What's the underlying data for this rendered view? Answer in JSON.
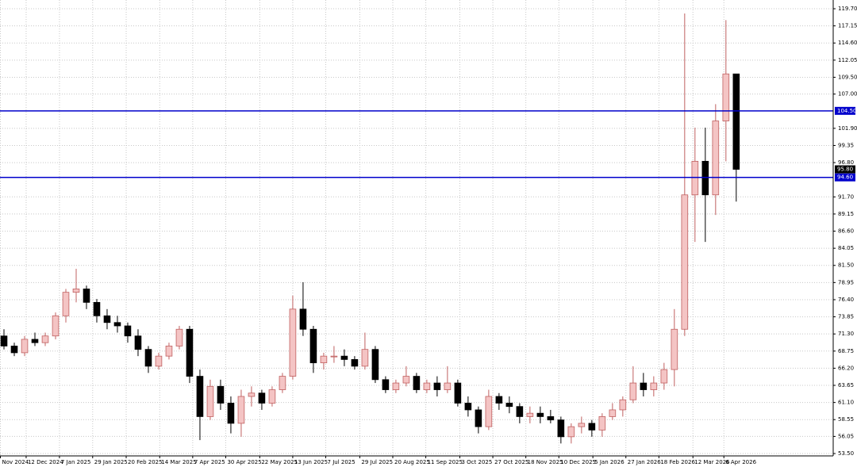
{
  "chart_data": {
    "type": "candlestick",
    "colors": {
      "up": "#f4c4c4",
      "up_edge": "#c06060",
      "down": "#000000",
      "hline": "#0000cc",
      "grid": "#c8c8c8"
    },
    "grid": true,
    "ylim": [
      53.15,
      121.0
    ],
    "xlim": [
      -0.385,
      80.4
    ],
    "yticks": [
      {
        "value": 119.7,
        "label": "119.70"
      },
      {
        "value": 117.15,
        "label": "117.15"
      },
      {
        "value": 114.6,
        "label": "114.60"
      },
      {
        "value": 112.05,
        "label": "112.05"
      },
      {
        "value": 109.5,
        "label": "109.50"
      },
      {
        "value": 107,
        "label": "107.00"
      },
      {
        "value": 101.9,
        "label": "101.90"
      },
      {
        "value": 99.35,
        "label": "99.35"
      },
      {
        "value": 96.8,
        "label": "96.80"
      },
      {
        "value": 91.7,
        "label": "91.70"
      },
      {
        "value": 89.15,
        "label": "89.15"
      },
      {
        "value": 86.6,
        "label": "86.60"
      },
      {
        "value": 84.05,
        "label": "84.05"
      },
      {
        "value": 81.5,
        "label": "81.50"
      },
      {
        "value": 78.95,
        "label": "78.95"
      },
      {
        "value": 76.4,
        "label": "76.40"
      },
      {
        "value": 73.85,
        "label": "73.85"
      },
      {
        "value": 71.3,
        "label": "71.30"
      },
      {
        "value": 68.75,
        "label": "68.75"
      },
      {
        "value": 66.2,
        "label": "66.20"
      },
      {
        "value": 63.65,
        "label": "63.65"
      },
      {
        "value": 61.1,
        "label": "61.10"
      },
      {
        "value": 58.55,
        "label": "58.55"
      },
      {
        "value": 56.05,
        "label": "56.05"
      },
      {
        "value": 53.5,
        "label": "53.50"
      }
    ],
    "xticks": [
      {
        "value": -0.35,
        "label": "Nov 2024"
      },
      {
        "value": 2.15,
        "label": "12 Dec 2024"
      },
      {
        "value": 5.38,
        "label": "7 Jan 2025"
      },
      {
        "value": 8.6,
        "label": "29 Jan 2025"
      },
      {
        "value": 11.85,
        "label": "20 Feb 2025"
      },
      {
        "value": 15.1,
        "label": "14 Mar 2025"
      },
      {
        "value": 18.3,
        "label": "7 Apr 2025"
      },
      {
        "value": 21.5,
        "label": "30 Apr 2025"
      },
      {
        "value": 24.8,
        "label": "22 May 2025"
      },
      {
        "value": 28,
        "label": "13 Jun 2025"
      },
      {
        "value": 31.2,
        "label": "7 Jul 2025"
      },
      {
        "value": 34.5,
        "label": "29 Jul 2025"
      },
      {
        "value": 37.7,
        "label": "20 Aug 2025"
      },
      {
        "value": 40.9,
        "label": "11 Sep 2025"
      },
      {
        "value": 44.2,
        "label": "3 Oct 2025"
      },
      {
        "value": 47.4,
        "label": "27 Oct 2025"
      },
      {
        "value": 50.6,
        "label": "18 Nov 2025"
      },
      {
        "value": 53.8,
        "label": "10 Dec 2025"
      },
      {
        "value": 57.1,
        "label": "5 Jan 2026"
      },
      {
        "value": 60.3,
        "label": "27 Jan 2026"
      },
      {
        "value": 63.5,
        "label": "18 Feb 2026"
      },
      {
        "value": 66.8,
        "label": "12 Mar 2026"
      },
      {
        "value": 69.8,
        "label": "6 Apr 2026"
      }
    ],
    "hlines": [
      {
        "value": 104.5,
        "label": "104.50"
      },
      {
        "value": 94.6,
        "label": "94.60"
      }
    ],
    "current_price": {
      "value": 95.8,
      "label": "95.80"
    },
    "open": [
      71,
      69.5,
      68.5,
      70.5,
      70,
      71,
      74,
      77.5,
      78,
      76,
      74,
      73,
      72.5,
      71,
      69,
      66.5,
      68,
      69.5,
      72,
      65,
      59,
      63.5,
      61,
      58,
      62,
      62.5,
      61,
      63,
      65,
      75,
      72,
      67,
      68,
      68,
      67.5,
      66.5,
      69,
      64.5,
      63,
      64,
      65,
      63,
      64,
      63,
      64,
      61,
      60,
      57.5,
      62,
      61,
      60.5,
      59,
      59.5,
      59,
      58.5,
      56,
      57.5,
      58,
      57,
      59,
      60,
      61.5,
      64,
      63,
      64,
      66,
      72,
      92,
      97,
      92,
      103,
      110
    ],
    "high": [
      72,
      70,
      71,
      71.5,
      71.5,
      74.5,
      78,
      81,
      78.5,
      76.5,
      75,
      74,
      73,
      72,
      69.5,
      68.5,
      70,
      72.5,
      72.5,
      66,
      64.5,
      64.5,
      62,
      63,
      63.5,
      63,
      63.5,
      65.5,
      77,
      79,
      72.5,
      68.5,
      69.5,
      69,
      68,
      71.5,
      69.5,
      65,
      64.5,
      66.5,
      65.5,
      64.5,
      65,
      66.5,
      64.5,
      62,
      60.5,
      63,
      62.5,
      62,
      61,
      60.5,
      60.5,
      60,
      59,
      58,
      59,
      58.5,
      59.5,
      61,
      62,
      66.5,
      65.5,
      65,
      67,
      75,
      119,
      102,
      102,
      105.5,
      118,
      110
    ],
    "low": [
      69,
      68,
      68,
      69.5,
      69.5,
      70.5,
      73,
      76,
      75,
      73,
      72,
      71.5,
      70,
      68,
      65.5,
      66,
      67.5,
      69,
      64,
      55.5,
      58.5,
      60,
      56.5,
      56,
      60.5,
      60,
      60.5,
      62.5,
      64.5,
      71,
      65.5,
      66,
      67,
      66.5,
      66,
      66,
      64,
      62.5,
      62.5,
      63.5,
      62.5,
      62.5,
      62,
      62.5,
      60.5,
      59,
      56.5,
      57,
      60,
      59.5,
      58,
      58,
      58,
      58,
      55,
      55,
      56.5,
      56,
      56,
      58.5,
      59,
      61,
      62,
      62,
      63,
      63.5,
      71,
      85,
      85,
      89,
      97,
      91
    ],
    "close": [
      69.5,
      68.5,
      70.5,
      70,
      71,
      74,
      77.5,
      78,
      76,
      74,
      73,
      72.5,
      71,
      69,
      66.5,
      68,
      69.5,
      72,
      65,
      59,
      63.5,
      61,
      58,
      62,
      62.5,
      61,
      63,
      65,
      75,
      72,
      67,
      68,
      68,
      67.5,
      66.5,
      69,
      64.5,
      63,
      64,
      65,
      63,
      64,
      63,
      64,
      61,
      60,
      57.5,
      62,
      61,
      60.5,
      59,
      59.5,
      59,
      58.5,
      56,
      57.5,
      58,
      57,
      59,
      60,
      61.5,
      64,
      63,
      64,
      66,
      72,
      92,
      97,
      92,
      103,
      110,
      95.8
    ]
  }
}
